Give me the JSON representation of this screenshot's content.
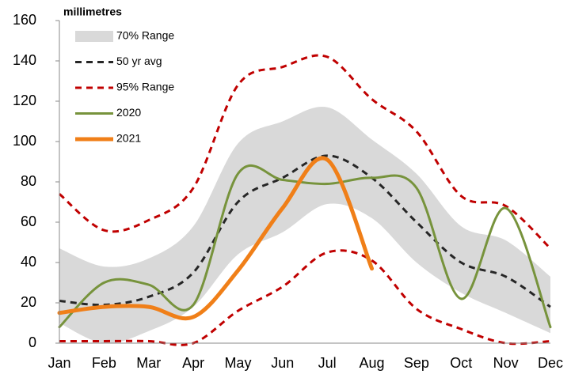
{
  "chart_data": {
    "type": "line",
    "y_label": "millimetres",
    "categories": [
      "Jan",
      "Feb",
      "Mar",
      "Apr",
      "May",
      "Jun",
      "Jul",
      "Aug",
      "Sep",
      "Oct",
      "Nov",
      "Dec"
    ],
    "ylim": [
      0,
      160
    ],
    "yticks": [
      0,
      20,
      40,
      60,
      80,
      100,
      120,
      140,
      160
    ],
    "legend": "top-left",
    "series": [
      {
        "name": "70% Range",
        "color": "#d9d9d9",
        "style": "band",
        "high": [
          47,
          38,
          42,
          58,
          99,
          110,
          117,
          101,
          84,
          58,
          51,
          33
        ],
        "low": [
          10,
          0,
          6,
          18,
          44,
          55,
          69,
          62,
          40,
          25,
          15,
          5
        ]
      },
      {
        "name": "50 yr avg",
        "color": "#262626",
        "style": "dashed",
        "values": [
          21,
          19,
          23,
          35,
          70,
          82,
          93,
          82,
          60,
          40,
          33,
          18
        ]
      },
      {
        "name": "95% Range",
        "color": "#c00000",
        "style": "dashed",
        "high": [
          74,
          56,
          61,
          77,
          128,
          137,
          142,
          121,
          105,
          73,
          68,
          47
        ],
        "low": [
          1,
          1,
          1,
          0,
          16,
          28,
          45,
          41,
          17,
          7,
          0,
          1
        ]
      },
      {
        "name": "2020",
        "color": "#77933c",
        "style": "solid",
        "width": 3,
        "values": [
          8,
          30,
          29,
          19,
          84,
          81,
          79,
          82,
          77,
          22,
          67,
          8
        ]
      },
      {
        "name": "2021",
        "color": "#f07f18",
        "style": "solid",
        "width": 5,
        "values": [
          15,
          18,
          18,
          13,
          36,
          67,
          91,
          37,
          null,
          null,
          null,
          null
        ]
      }
    ]
  }
}
